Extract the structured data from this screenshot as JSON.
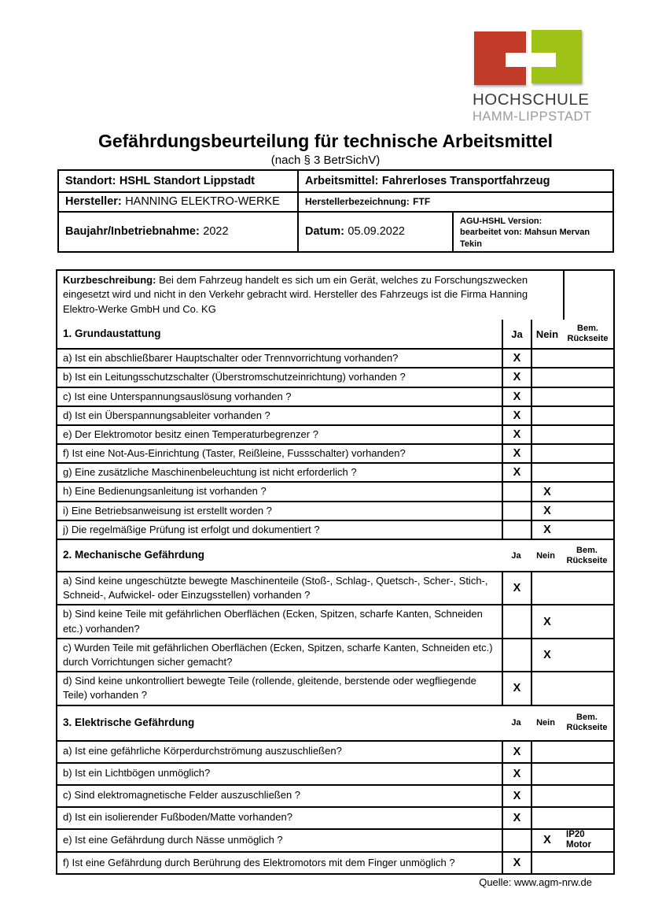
{
  "logo": {
    "text_line1": "HOCHSCHULE",
    "text_line2": "HAMM-LIPPSTADT",
    "red": "#c23a28",
    "green": "#9ec316"
  },
  "header": {
    "title": "Gefährdungsbeurteilung für technische Arbeitsmittel",
    "subtitle": "(nach § 3 BetrSichV)"
  },
  "info_table": {
    "standort": {
      "label": "Standort:",
      "value": "HSHL Standort Lippstadt"
    },
    "arbeitsmittel": {
      "label": "Arbeitsmittel:",
      "value": "Fahrerloses Transportfahrzeug"
    },
    "hersteller": {
      "label": "Hersteller:",
      "value": "HANNING ELEKTRO-WERKE"
    },
    "herstellerbezeichnung": {
      "label": "Herstellerbezeichnung:",
      "value": "FTF"
    },
    "baujahr": {
      "label": "Baujahr/Inbetriebnahme:",
      "value": "2022"
    },
    "datum": {
      "label": "Datum:",
      "value": "05.09.2022"
    },
    "agu": {
      "version_label": "AGU-HSHL Version:",
      "bearbeitet": "bearbeitet von: Mahsun Mervan Tekin"
    }
  },
  "kurzbeschreibung": {
    "label": "Kurzbeschreibung:",
    "text": "Bei dem Fahrzeug handelt es sich um ein Gerät, welches zu Forschungszwecken eingesetzt wird und nicht in den Verkehr gebracht wird. Hersteller des Fahrzeugs ist die Firma Hanning Elektro-Werke GmbH und Co. KG"
  },
  "column_headers": {
    "ja": "Ja",
    "nein": "Nein",
    "bem": [
      "Bem.",
      "Rückseite"
    ]
  },
  "mark": "X",
  "sections": [
    {
      "title": "1. Grundaustattung",
      "rows": [
        {
          "text": "a) Ist ein abschließbarer Hauptschalter oder Trennvorrichtung vorhanden?",
          "answer": "ja",
          "bem": ""
        },
        {
          "text": "b) Ist ein Leitungsschutzschalter (Überstromschutzeinrichtung) vorhanden ?",
          "answer": "ja",
          "bem": ""
        },
        {
          "text": "c) Ist eine Unterspannungsauslösung vorhanden ?",
          "answer": "ja",
          "bem": ""
        },
        {
          "text": "d) Ist ein Überspannungsableiter vorhanden ?",
          "answer": "ja",
          "bem": ""
        },
        {
          "text": "e) Der Elektromotor besitz einen Temperaturbegrenzer ?",
          "answer": "ja",
          "bem": ""
        },
        {
          "text": "f) Ist eine Not-Aus-Einrichtung (Taster, Reißleine, Fussschalter) vorhanden?",
          "answer": "ja",
          "bem": ""
        },
        {
          "text": "g) Eine zusätzliche Maschinenbeleuchtung ist nicht erforderlich ?",
          "answer": "ja",
          "bem": ""
        },
        {
          "text": "h) Eine Bedienungsanleitung ist vorhanden ?",
          "answer": "nein",
          "bem": ""
        },
        {
          "text": "i) Eine Betriebsanweisung ist erstellt worden ?",
          "answer": "nein",
          "bem": ""
        },
        {
          "text": "j) Die regelmäßige Prüfung ist erfolgt und dokumentiert ?",
          "answer": "nein",
          "bem": ""
        }
      ]
    },
    {
      "title": "2. Mechanische Gefährdung",
      "rows": [
        {
          "text": "a) Sind keine ungeschützte bewegte Maschinenteile (Stoß-, Schlag-, Quetsch-, Scher-, Stich-, Schneid-, Aufwickel- oder Einzugsstellen) vorhanden ?",
          "answer": "ja",
          "bem": ""
        },
        {
          "text": "b) Sind keine Teile mit gefährlichen Oberflächen (Ecken, Spitzen, scharfe Kanten, Schneiden etc.) vorhanden?",
          "answer": "nein",
          "bem": ""
        },
        {
          "text": "c) Wurden Teile mit gefährlichen Oberflächen (Ecken, Spitzen, scharfe Kanten, Schneiden etc.) durch Vorrichtungen sicher gemacht?",
          "answer": "nein",
          "bem": ""
        },
        {
          "text": "d) Sind keine unkontrolliert bewegte Teile (rollende, gleitende, berstende oder wegfliegende Teile) vorhanden ?",
          "answer": "ja",
          "bem": ""
        }
      ]
    },
    {
      "title": "3. Elektrische Gefährdung",
      "rows": [
        {
          "text": "a) Ist eine gefährliche Körperdurchströmung auszuschließen?",
          "answer": "ja",
          "bem": ""
        },
        {
          "text": "b) Ist ein Lichtbögen unmöglich?",
          "answer": "ja",
          "bem": ""
        },
        {
          "text": "c) Sind elektromagnetische Felder auszuschließen ?",
          "answer": "ja",
          "bem": ""
        },
        {
          "text": "d) Ist ein isolierender Fußboden/Matte vorhanden?",
          "answer": "ja",
          "bem": ""
        },
        {
          "text": "e) Ist eine Gefährdung durch Nässe unmöglich ?",
          "answer": "nein",
          "bem": "IP20 Motor"
        },
        {
          "text": "f) Ist eine Gefährdung durch Berührung des Elektromotors mit dem Finger unmöglich ?",
          "answer": "ja",
          "bem": ""
        }
      ]
    }
  ],
  "footer": {
    "source": "Quelle: www.agm-nrw.de"
  }
}
